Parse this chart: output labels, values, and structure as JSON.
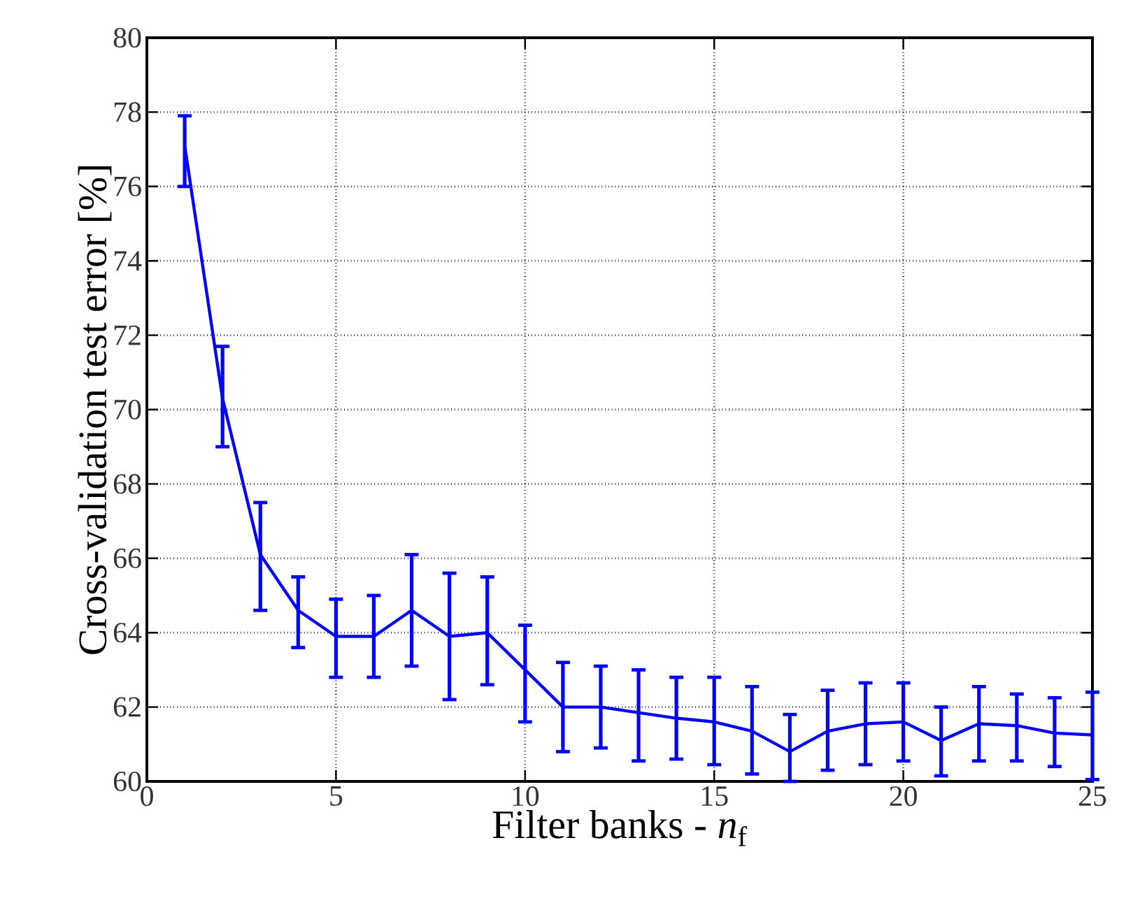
{
  "chart_data": {
    "type": "line",
    "xlabel": "Filter banks - *n*$_{f}$",
    "ylabel": "Cross-validation test error [%]",
    "x": [
      1,
      2,
      3,
      4,
      5,
      6,
      7,
      8,
      9,
      10,
      11,
      12,
      13,
      14,
      15,
      16,
      17,
      18,
      19,
      20,
      21,
      22,
      23,
      24,
      25
    ],
    "series": [
      {
        "color": "#0000ff",
        "values": [
          77.1,
          70.3,
          66.1,
          64.6,
          63.9,
          63.9,
          64.6,
          63.9,
          64.0,
          63.0,
          62.0,
          62.0,
          61.85,
          61.7,
          61.6,
          61.35,
          60.8,
          61.35,
          61.55,
          61.6,
          61.1,
          61.55,
          61.5,
          61.3,
          61.25
        ],
        "errors": [
          [
            76.0,
            77.9
          ],
          [
            69.0,
            71.7
          ],
          [
            64.6,
            67.5
          ],
          [
            63.6,
            65.5
          ],
          [
            62.8,
            64.9
          ],
          [
            62.8,
            65.0
          ],
          [
            63.1,
            66.1
          ],
          [
            62.2,
            65.6
          ],
          [
            62.6,
            65.5
          ],
          [
            61.6,
            64.2
          ],
          [
            60.8,
            63.2
          ],
          [
            60.9,
            63.1
          ],
          [
            60.55,
            63.0
          ],
          [
            60.6,
            62.8
          ],
          [
            60.45,
            62.8
          ],
          [
            60.2,
            62.55
          ],
          [
            60.0,
            61.8
          ],
          [
            60.3,
            62.45
          ],
          [
            60.45,
            62.65
          ],
          [
            60.55,
            62.65
          ],
          [
            60.15,
            62.0
          ],
          [
            60.55,
            62.55
          ],
          [
            60.55,
            62.35
          ],
          [
            60.4,
            62.25
          ],
          [
            60.05,
            62.4
          ]
        ]
      }
    ],
    "xlim": [
      0,
      25
    ],
    "ylim": [
      60,
      80
    ],
    "xticks": [
      0,
      5,
      10,
      15,
      20,
      25
    ],
    "yticks": [
      60,
      62,
      64,
      66,
      68,
      70,
      72,
      74,
      76,
      78,
      80
    ],
    "grid": true,
    "marker": "none",
    "line_style": "solid"
  }
}
